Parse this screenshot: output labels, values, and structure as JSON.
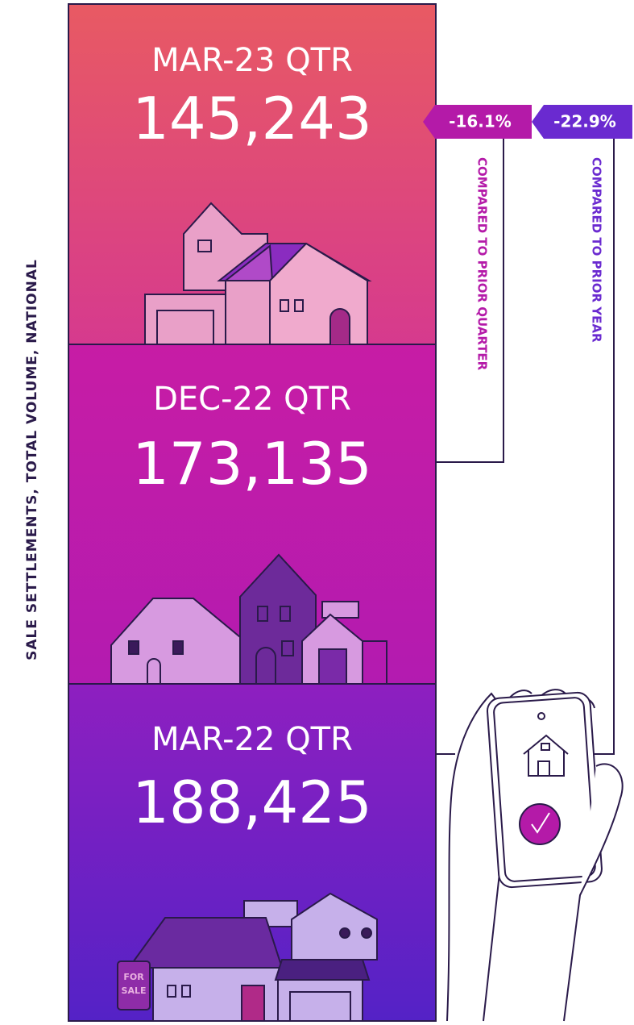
{
  "axis_label": "SALE SETTLEMENTS, TOTAL VOLUME, NATIONAL",
  "panels": [
    {
      "period": "MAR-23 QTR",
      "value": "145,243"
    },
    {
      "period": "DEC-22 QTR",
      "value": "173,135"
    },
    {
      "period": "MAR-22 QTR",
      "value": "188,425"
    }
  ],
  "comparisons": [
    {
      "change": "-16.1%",
      "label": "COMPARED TO PRIOR QUARTER"
    },
    {
      "change": "-22.9%",
      "label": "COMPARED TO PRIOR YEAR"
    }
  ],
  "sign_text": [
    "FOR",
    "SALE"
  ]
}
